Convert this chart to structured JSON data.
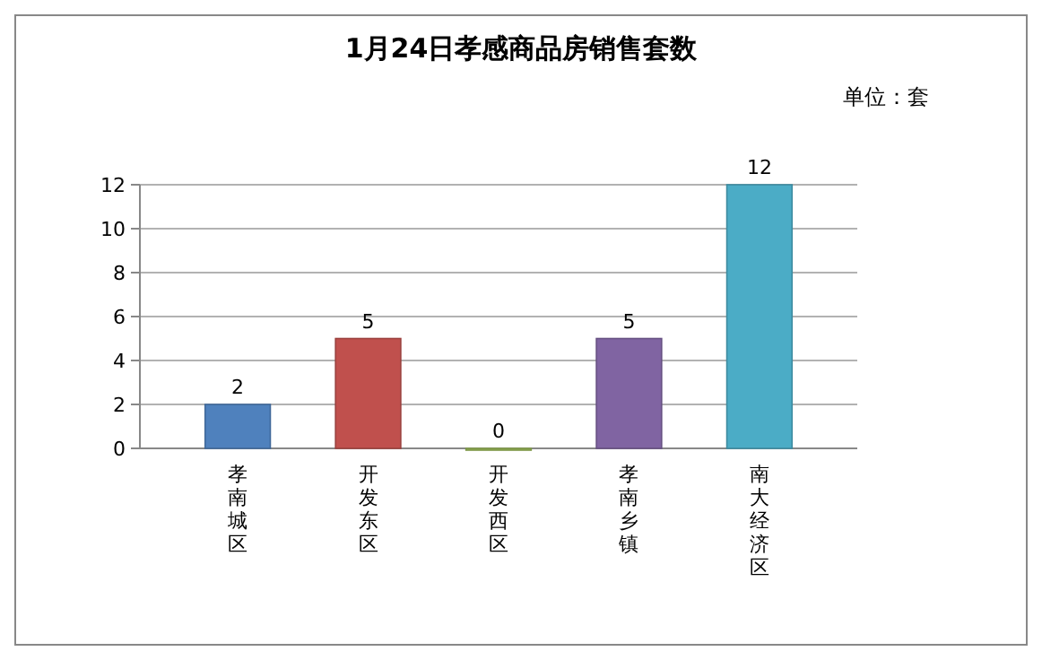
{
  "chart_data": {
    "type": "bar",
    "title": "1月24日孝感商品房销售套数",
    "annotations": [
      "单位：套"
    ],
    "categories": [
      "孝南城区",
      "开发东区",
      "开发西区",
      "孝南乡镇",
      "南大经济区"
    ],
    "values": [
      2,
      5,
      0,
      5,
      12
    ],
    "colors": [
      "#4f81bd",
      "#c0504d",
      "#9bbb59",
      "#8064a2",
      "#4bacc6"
    ],
    "ylim": [
      0,
      12
    ],
    "yticks": [
      0,
      2,
      4,
      6,
      8,
      10,
      12
    ],
    "grid": "y",
    "data_labels": true
  }
}
